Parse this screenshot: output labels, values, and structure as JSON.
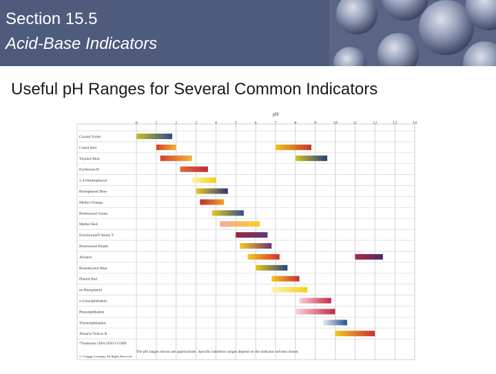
{
  "header": {
    "section": "Section 15.5",
    "subtitle": "Acid-Base Indicators"
  },
  "slide_title": "Useful pH Ranges for Several Common Indicators",
  "colors": {
    "header_bg": "#4f5b7c",
    "header_panel": "#5a6585"
  },
  "chart_data": {
    "type": "table",
    "xlabel": "pH",
    "ticks": [
      0,
      1,
      2,
      3,
      4,
      5,
      6,
      7,
      8,
      9,
      10,
      11,
      12,
      13,
      14
    ],
    "xlim": [
      0,
      14
    ],
    "rows": [
      {
        "name": "Crystal Violet",
        "ranges": [
          {
            "from": 0.0,
            "to": 1.8,
            "c1": "#c9c12a",
            "c2": "#2c4a8a"
          }
        ]
      },
      {
        "name": "Cresol Red",
        "ranges": [
          {
            "from": 1.0,
            "to": 2.0,
            "c1": "#d7402e",
            "c2": "#f2b437"
          },
          {
            "from": 7.0,
            "to": 8.8,
            "c1": "#f5c11e",
            "c2": "#c4352e"
          }
        ]
      },
      {
        "name": "Thymol Blue",
        "ranges": [
          {
            "from": 1.2,
            "to": 2.8,
            "c1": "#d7402e",
            "c2": "#f2b437"
          },
          {
            "from": 8.0,
            "to": 9.6,
            "c1": "#d9c21f",
            "c2": "#1f3f7c"
          }
        ]
      },
      {
        "name": "Erythrosin B",
        "ranges": [
          {
            "from": 2.2,
            "to": 3.6,
            "c1": "#e0693a",
            "c2": "#c42b35"
          }
        ]
      },
      {
        "name": "2,4-Dinitrophenol",
        "ranges": [
          {
            "from": 2.8,
            "to": 4.0,
            "c1": "#fdf4b0",
            "c2": "#f0d010"
          }
        ]
      },
      {
        "name": "Bromphenol Blue",
        "ranges": [
          {
            "from": 3.0,
            "to": 4.6,
            "c1": "#f2c421",
            "c2": "#243a75"
          }
        ]
      },
      {
        "name": "Methyl Orange",
        "ranges": [
          {
            "from": 3.2,
            "to": 4.4,
            "c1": "#c42b35",
            "c2": "#f0a22a"
          }
        ]
      },
      {
        "name": "Bromcresol Green",
        "ranges": [
          {
            "from": 3.8,
            "to": 5.4,
            "c1": "#e9c71d",
            "c2": "#2c4f8f"
          }
        ]
      },
      {
        "name": "Methyl Red",
        "ranges": [
          {
            "from": 4.2,
            "to": 6.2,
            "c1": "#f3a9a0",
            "c2": "#f5d21f"
          }
        ]
      },
      {
        "name": "Eriochrome® Black T",
        "ranges": [
          {
            "from": 5.0,
            "to": 6.6,
            "c1": "#a02540",
            "c2": "#5d3a7a"
          }
        ]
      },
      {
        "name": "Bromcresol Purple",
        "ranges": [
          {
            "from": 5.2,
            "to": 6.8,
            "c1": "#f4ce1e",
            "c2": "#6e2d7a"
          }
        ]
      },
      {
        "name": "Alizarin",
        "ranges": [
          {
            "from": 5.6,
            "to": 7.2,
            "c1": "#f5c71f",
            "c2": "#d1302f"
          },
          {
            "from": 11.0,
            "to": 12.4,
            "c1": "#b2283e",
            "c2": "#4a2a6e"
          }
        ]
      },
      {
        "name": "Bromthymol Blue",
        "ranges": [
          {
            "from": 6.0,
            "to": 7.6,
            "c1": "#e8c61f",
            "c2": "#23417e"
          }
        ]
      },
      {
        "name": "Phenol Red",
        "ranges": [
          {
            "from": 6.8,
            "to": 8.2,
            "c1": "#f5c61e",
            "c2": "#c9302f"
          }
        ]
      },
      {
        "name": "m-Nitrophenol",
        "ranges": [
          {
            "from": 6.8,
            "to": 8.6,
            "c1": "#fdf5b5",
            "c2": "#f2d21a"
          }
        ]
      },
      {
        "name": "o-Cresolphthalein",
        "ranges": [
          {
            "from": 8.2,
            "to": 9.8,
            "c1": "#f7d0d4",
            "c2": "#c32b48"
          }
        ]
      },
      {
        "name": "Phenolphthalein",
        "ranges": [
          {
            "from": 8.0,
            "to": 10.0,
            "c1": "#f5d5d8",
            "c2": "#c42b47"
          }
        ]
      },
      {
        "name": "Thymolphthalein",
        "ranges": [
          {
            "from": 9.4,
            "to": 10.6,
            "c1": "#e4e8f2",
            "c2": "#2a4e9a"
          }
        ]
      },
      {
        "name": "Alizarin Yellow R",
        "ranges": [
          {
            "from": 10.0,
            "to": 12.0,
            "c1": "#f5c71f",
            "c2": "#c9302f"
          }
        ]
      }
    ],
    "footnote": "*Trademark CIBA GEIGY CORP.",
    "note": "The pH ranges shown are approximate. Specific transition ranges depend on the indicator solvent chosen.",
    "copyright": "© Cengage Learning. All Rights Reserved."
  }
}
